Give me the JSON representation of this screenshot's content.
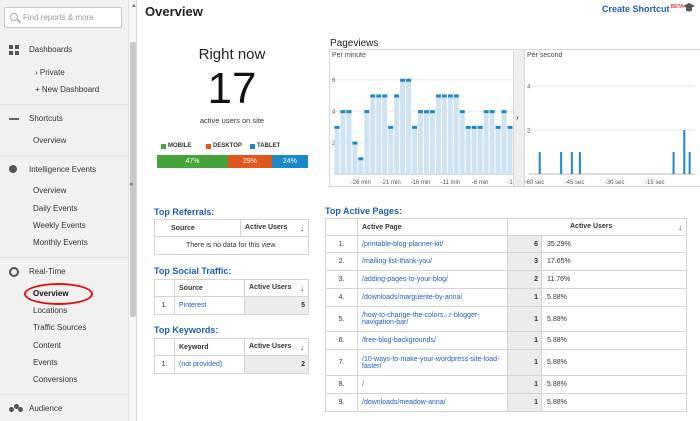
{
  "search": {
    "placeholder": "Find reports & more"
  },
  "sidebar": {
    "dashboards": {
      "label": "Dashboards",
      "items": [
        "› Private",
        "+ New Dashboard"
      ]
    },
    "shortcuts": {
      "label": "Shortcuts",
      "items": [
        "Overview"
      ]
    },
    "intelligence": {
      "label": "Intelligence Events",
      "items": [
        "Overview",
        "Daily Events",
        "Weekly Events",
        "Monthly Events"
      ]
    },
    "realtime": {
      "label": "Real-Time",
      "items": [
        "Overview",
        "Locations",
        "Traffic Sources",
        "Content",
        "Events",
        "Conversions"
      ]
    },
    "audience": {
      "label": "Audience"
    }
  },
  "header": {
    "title": "Overview",
    "create_shortcut": "Create Shortcut",
    "beta": "BETA"
  },
  "rightnow": {
    "title": "Right now",
    "count": "17",
    "label": "active users on site",
    "legend": [
      {
        "label": "MOBILE",
        "color": "#44a339"
      },
      {
        "label": "DESKTOP",
        "color": "#e0561c"
      },
      {
        "label": "TABLET",
        "color": "#1a88c9"
      }
    ],
    "devices": [
      {
        "label": "47%",
        "value": 47,
        "color": "#44a339"
      },
      {
        "label": "29%",
        "value": 29,
        "color": "#e0561c"
      },
      {
        "label": "24%",
        "value": 24,
        "color": "#1a88c9"
      }
    ]
  },
  "pageviews": {
    "title": "Pageviews",
    "per_minute_label": "Per minute",
    "per_second_label": "Per second",
    "expand_arrow": "›"
  },
  "chart_data": [
    {
      "type": "bar",
      "title": "Per minute",
      "x_tick_labels": [
        "-26 min",
        "-21 min",
        "-16 min",
        "-11 min",
        "-6 min",
        "-1"
      ],
      "y_tick_labels": [
        "6",
        "4",
        "2"
      ],
      "ylim": [
        0,
        7
      ],
      "x": [
        -30,
        -29,
        -28,
        -27,
        -26,
        -25,
        -24,
        -23,
        -22,
        -21,
        -20,
        -19,
        -18,
        -17,
        -16,
        -15,
        -14,
        -13,
        -12,
        -11,
        -10,
        -9,
        -8,
        -7,
        -6,
        -5,
        -4,
        -3,
        -2,
        -1
      ],
      "values": [
        3,
        4,
        4,
        2,
        1,
        4,
        5,
        5,
        5,
        3,
        5,
        6,
        6,
        3,
        4,
        4,
        4,
        5,
        5,
        5,
        5,
        4,
        3,
        3,
        3,
        4,
        4,
        3,
        4,
        3
      ]
    },
    {
      "type": "bar",
      "title": "Per second",
      "x_tick_labels": [
        "-60 sec",
        "-45 sec",
        "-30 sec",
        "-15 sec"
      ],
      "y_tick_labels": [
        "4",
        "2"
      ],
      "ylim": [
        0,
        5
      ],
      "x": [
        -58,
        -50,
        -46,
        -43,
        -8,
        -4,
        -2
      ],
      "values": [
        1,
        1,
        1,
        1,
        1,
        2,
        1
      ]
    }
  ],
  "referrals": {
    "title": "Top Referrals:",
    "headers": [
      "Source",
      "Active Users"
    ],
    "empty": "There is no data for this view."
  },
  "social": {
    "title": "Top Social Traffic:",
    "headers": [
      "Source",
      "Active Users"
    ],
    "rows": [
      {
        "idx": "1.",
        "source": "Pinterest",
        "users": "5"
      }
    ]
  },
  "keywords": {
    "title": "Top Keywords:",
    "headers": [
      "Keyword",
      "Active Users"
    ],
    "rows": [
      {
        "idx": "1.",
        "keyword": "(not provided)",
        "users": "2"
      }
    ]
  },
  "active_pages": {
    "title": "Top Active Pages:",
    "headers": [
      "Active Page",
      "Active Users"
    ],
    "rows": [
      {
        "idx": "1.",
        "page": "/printable-blog-planner-kit/",
        "users": "6",
        "pct": "35.29%"
      },
      {
        "idx": "2.",
        "page": "/mailing-list-thank-you/",
        "users": "3",
        "pct": "17.65%"
      },
      {
        "idx": "3.",
        "page": "/adding-pages-to-your-blog/",
        "users": "2",
        "pct": "11.76%"
      },
      {
        "idx": "4.",
        "page": "/downloads/marguerite-by-anna/",
        "users": "1",
        "pct": "5.88%"
      },
      {
        "idx": "5.",
        "page": "/how-to-change-the-colors...r-blogger-navigation-bar/",
        "users": "1",
        "pct": "5.88%"
      },
      {
        "idx": "6.",
        "page": "/free-blog-backgrounds/",
        "users": "1",
        "pct": "5.88%"
      },
      {
        "idx": "7.",
        "page": "/10-ways-to-make-your-wordpress-site-load-faster/",
        "users": "1",
        "pct": "5.88%"
      },
      {
        "idx": "8.",
        "page": "/",
        "users": "1",
        "pct": "5.88%"
      },
      {
        "idx": "9.",
        "page": "/downloads/meadow-anna/",
        "users": "1",
        "pct": "5.88%"
      }
    ]
  }
}
